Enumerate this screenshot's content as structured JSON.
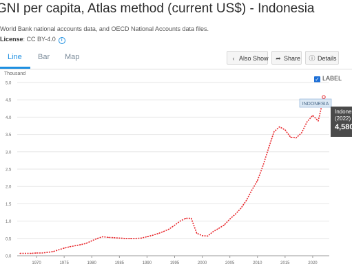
{
  "page": {
    "title": "GNI per capita, Atlas method (current US$) - Indonesia",
    "source": "World Bank national accounts data, and OECD National Accounts data files.",
    "license_label": "License",
    "license_value": ": CC BY-4.0"
  },
  "tabs": [
    "Line",
    "Bar",
    "Map"
  ],
  "active_tab": "Line",
  "toolbar": {
    "also_show": "Also Show",
    "share": "Share",
    "details": "Details"
  },
  "label_toggle": {
    "text": "LABEL",
    "checked": true
  },
  "icons": {
    "info": "info-circle-icon",
    "also_show": "chevron-left-icon",
    "share": "share-icon",
    "details": "info-icon",
    "checkbox": "checkmark-icon"
  },
  "colors": {
    "accent": "#1d8fe1",
    "series": "#e8262b",
    "tooltip_bg": "#4a4a4a",
    "series_label_bg": "#dbe8f4"
  },
  "tooltip": {
    "line1": "Indonesia",
    "line2": "(2022)",
    "line3": "4,580"
  },
  "chart_data": {
    "type": "line",
    "ylabel": "Thousand",
    "ylim": [
      0,
      5.0
    ],
    "yticks": [
      "0.0",
      "0.5",
      "1.0",
      "1.5",
      "2.0",
      "2.5",
      "3.0",
      "3.5",
      "4.0",
      "4.5",
      "5.0"
    ],
    "xticks": [
      "1970",
      "1975",
      "1980",
      "1985",
      "1990",
      "1995",
      "2000",
      "2005",
      "2010",
      "2015",
      "2020"
    ],
    "grid": true,
    "series": [
      {
        "name": "INDONESIA",
        "x": [
          1967,
          1968,
          1969,
          1970,
          1971,
          1972,
          1973,
          1974,
          1975,
          1976,
          1977,
          1978,
          1979,
          1980,
          1981,
          1982,
          1983,
          1984,
          1985,
          1986,
          1987,
          1988,
          1989,
          1990,
          1991,
          1992,
          1993,
          1994,
          1995,
          1996,
          1997,
          1998,
          1999,
          2000,
          2001,
          2002,
          2003,
          2004,
          2005,
          2006,
          2007,
          2008,
          2009,
          2010,
          2011,
          2012,
          2013,
          2014,
          2015,
          2016,
          2017,
          2018,
          2019,
          2020,
          2021,
          2022
        ],
        "values": [
          0.07,
          0.07,
          0.07,
          0.08,
          0.08,
          0.1,
          0.12,
          0.17,
          0.22,
          0.26,
          0.29,
          0.32,
          0.36,
          0.43,
          0.5,
          0.55,
          0.53,
          0.52,
          0.51,
          0.5,
          0.5,
          0.5,
          0.51,
          0.55,
          0.59,
          0.64,
          0.7,
          0.77,
          0.88,
          1.0,
          1.08,
          1.08,
          0.65,
          0.58,
          0.57,
          0.7,
          0.79,
          0.89,
          1.06,
          1.2,
          1.37,
          1.6,
          1.9,
          2.17,
          2.6,
          3.1,
          3.58,
          3.72,
          3.63,
          3.42,
          3.4,
          3.55,
          3.87,
          4.05,
          3.89,
          4.58
        ]
      }
    ]
  }
}
